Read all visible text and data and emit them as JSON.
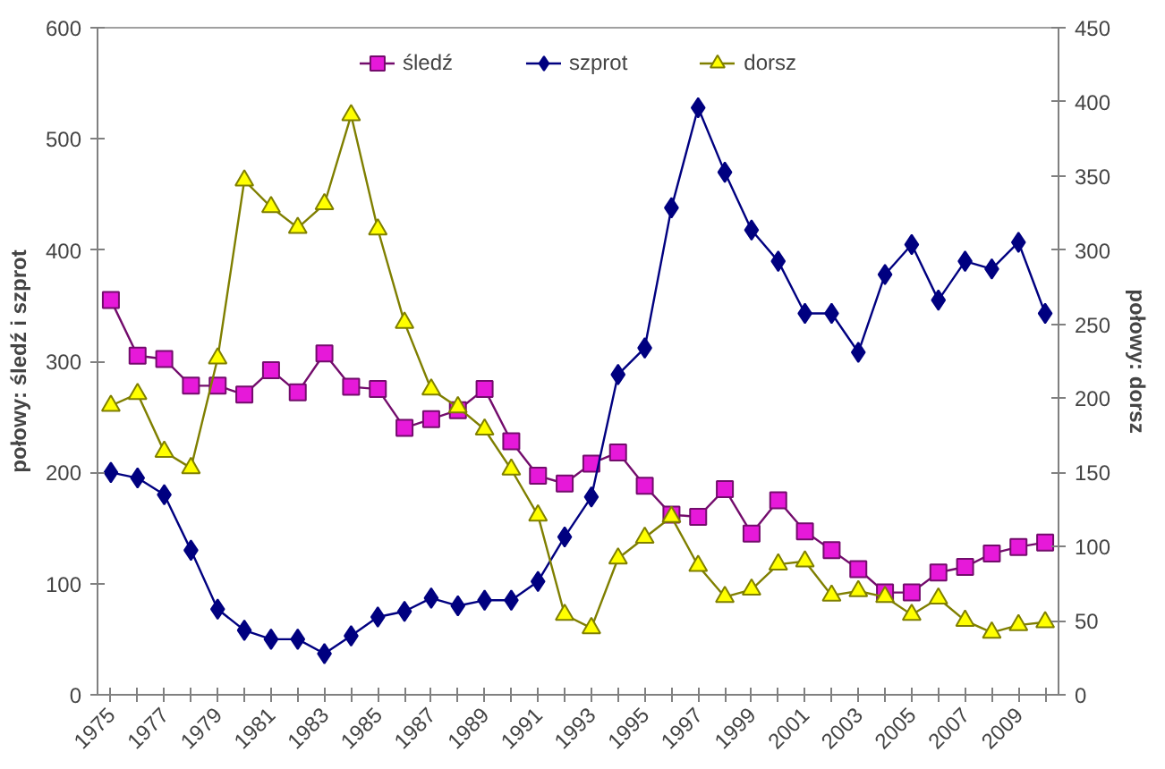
{
  "chart_data": {
    "type": "line",
    "ylabel": "połowy: śledź i szprot",
    "y2label": "połowy: dorsz",
    "x": [
      1975,
      1976,
      1977,
      1978,
      1979,
      1980,
      1981,
      1982,
      1983,
      1984,
      1985,
      1986,
      1987,
      1988,
      1989,
      1990,
      1991,
      1992,
      1993,
      1994,
      1995,
      1996,
      1997,
      1998,
      1999,
      2000,
      2001,
      2002,
      2003,
      2004,
      2005,
      2006,
      2007,
      2008,
      2009,
      2010
    ],
    "xlim": [
      1974.5,
      2010.5
    ],
    "xticks": [
      1975,
      {
        "value": 1976,
        "label": null
      },
      1977,
      {
        "value": 1978,
        "label": null
      },
      1979,
      {
        "value": 1980,
        "label": null
      },
      1981,
      {
        "value": 1982,
        "label": null
      },
      1983,
      {
        "value": 1984,
        "label": null
      },
      1985,
      {
        "value": 1986,
        "label": null
      },
      1987,
      {
        "value": 1988,
        "label": null
      },
      1989,
      {
        "value": 1990,
        "label": null
      },
      1991,
      {
        "value": 1992,
        "label": null
      },
      1993,
      {
        "value": 1994,
        "label": null
      },
      1995,
      {
        "value": 1996,
        "label": null
      },
      1997,
      {
        "value": 1998,
        "label": null
      },
      1999,
      {
        "value": 2000,
        "label": null
      },
      2001,
      {
        "value": 2002,
        "label": null
      },
      2003,
      {
        "value": 2004,
        "label": null
      },
      2005,
      {
        "value": 2006,
        "label": null
      },
      2007,
      {
        "value": 2008,
        "label": null
      },
      2009,
      {
        "value": 2010,
        "label": null
      }
    ],
    "ylim": [
      0,
      600
    ],
    "yticks": [
      0,
      100,
      200,
      300,
      400,
      500,
      600
    ],
    "y2lim": [
      0,
      450
    ],
    "y2ticks": [
      0,
      50,
      100,
      150,
      200,
      250,
      300,
      350,
      400,
      450
    ],
    "grid": false,
    "legend": "top",
    "series": [
      {
        "name": "śledź",
        "color": "#e619d9",
        "marker": "square",
        "values": [
          355,
          305,
          302,
          278,
          278,
          270,
          292,
          272,
          307,
          277,
          275,
          240,
          248,
          256,
          275,
          228,
          197,
          190,
          208,
          218,
          188,
          162,
          160,
          185,
          145,
          175,
          147,
          130,
          113,
          92,
          92,
          110,
          115,
          127,
          133,
          137
        ]
      },
      {
        "name": "szprot",
        "color": "#000080",
        "marker": "diamond",
        "values": [
          200,
          195,
          180,
          130,
          77,
          58,
          50,
          50,
          37,
          53,
          70,
          75,
          87,
          80,
          85,
          85,
          102,
          142,
          178,
          288,
          312,
          438,
          528,
          470,
          418,
          390,
          343,
          343,
          308,
          378,
          405,
          355,
          390,
          383,
          407,
          343
        ]
      },
      {
        "name": "dorsz",
        "color": "#ffff00",
        "marker": "triangle",
        "axis": "y2",
        "values": [
          195,
          203,
          164,
          153,
          227,
          347,
          329,
          315,
          331,
          391,
          314,
          251,
          206,
          194,
          179,
          152,
          121,
          54,
          45,
          92,
          106,
          120,
          87,
          66,
          71,
          88,
          90,
          67,
          70,
          66,
          54,
          65,
          50,
          42,
          47,
          49
        ]
      }
    ]
  }
}
